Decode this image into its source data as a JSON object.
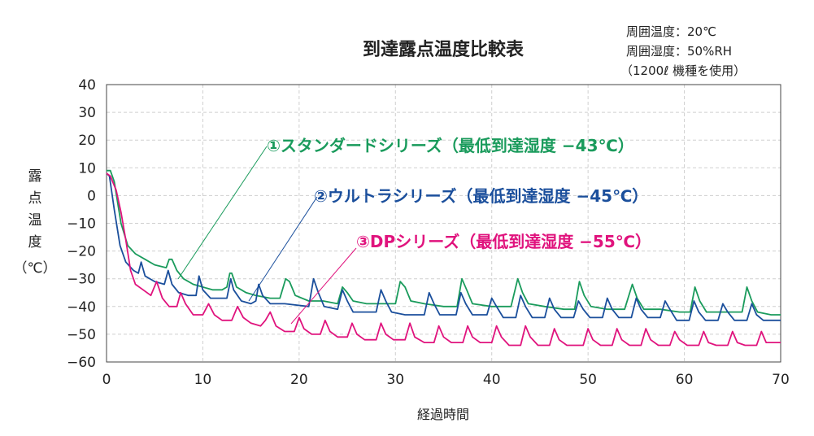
{
  "chart_data": {
    "type": "line",
    "title": "到達露点温度比較表",
    "notes": [
      "周囲温度：20℃",
      "周囲湿度：50%RH",
      "（1200ℓ 機種を使用）"
    ],
    "xlabel": "経過時間",
    "ylabel": "露点温度（℃）",
    "xlim": [
      0,
      70
    ],
    "ylim": [
      -60,
      40
    ],
    "xticks": [
      0,
      10,
      20,
      30,
      40,
      50,
      60,
      70
    ],
    "yticks": [
      40,
      30,
      20,
      10,
      0,
      -10,
      -20,
      -30,
      -40,
      -50,
      -60
    ],
    "xtick_labels": [
      "0",
      "10",
      "20",
      "30",
      "40",
      "50",
      "60",
      "70"
    ],
    "ytick_labels": [
      "40",
      "30",
      "20",
      "10",
      "0",
      "−10",
      "−20",
      "−30",
      "−40",
      "−50",
      "−60"
    ],
    "grid": true,
    "series": [
      {
        "name": "①スタンダードシリーズ（最低到達湿度 −43℃）",
        "color": "#1a9b5c",
        "points": [
          [
            0,
            9
          ],
          [
            0.4,
            9
          ],
          [
            0.8,
            5
          ],
          [
            1.5,
            -10
          ],
          [
            2.2,
            -18
          ],
          [
            3,
            -21
          ],
          [
            4,
            -23
          ],
          [
            5,
            -25
          ],
          [
            6.2,
            -26
          ],
          [
            6.5,
            -23
          ],
          [
            6.8,
            -23
          ],
          [
            7.3,
            -27
          ],
          [
            8,
            -30
          ],
          [
            9,
            -32
          ],
          [
            10,
            -33
          ],
          [
            11,
            -34
          ],
          [
            12,
            -34
          ],
          [
            12.5,
            -33
          ],
          [
            12.8,
            -28
          ],
          [
            13,
            -28
          ],
          [
            13.5,
            -33
          ],
          [
            14.5,
            -35
          ],
          [
            15.5,
            -36
          ],
          [
            17,
            -37
          ],
          [
            18,
            -37
          ],
          [
            18.6,
            -30
          ],
          [
            19,
            -31
          ],
          [
            19.6,
            -36
          ],
          [
            21,
            -38
          ],
          [
            22.5,
            -38
          ],
          [
            24,
            -39
          ],
          [
            24.5,
            -33
          ],
          [
            25,
            -35
          ],
          [
            25.6,
            -38
          ],
          [
            27,
            -39
          ],
          [
            28.5,
            -39
          ],
          [
            30,
            -39
          ],
          [
            30.5,
            -31
          ],
          [
            31,
            -33
          ],
          [
            31.6,
            -38
          ],
          [
            33,
            -39
          ],
          [
            35,
            -40
          ],
          [
            36.4,
            -40
          ],
          [
            36.9,
            -30
          ],
          [
            37.4,
            -34
          ],
          [
            38,
            -39
          ],
          [
            40,
            -40
          ],
          [
            42,
            -40
          ],
          [
            42.7,
            -30
          ],
          [
            43.2,
            -35
          ],
          [
            43.8,
            -39
          ],
          [
            45.5,
            -40
          ],
          [
            47.5,
            -41
          ],
          [
            48.6,
            -41
          ],
          [
            49.1,
            -31
          ],
          [
            49.6,
            -36
          ],
          [
            50.3,
            -40
          ],
          [
            52,
            -41
          ],
          [
            53.8,
            -41
          ],
          [
            54.6,
            -32
          ],
          [
            55.1,
            -37
          ],
          [
            55.8,
            -41
          ],
          [
            57.5,
            -41
          ],
          [
            59.5,
            -42
          ],
          [
            60.6,
            -42
          ],
          [
            61.1,
            -33
          ],
          [
            61.6,
            -38
          ],
          [
            62.3,
            -42
          ],
          [
            64,
            -42
          ],
          [
            66,
            -42
          ],
          [
            66.5,
            -33
          ],
          [
            67,
            -38
          ],
          [
            67.6,
            -42
          ],
          [
            69,
            -43
          ],
          [
            70,
            -43
          ]
        ]
      },
      {
        "name": "②ウルトラシリーズ（最低到達湿度 −45℃）",
        "color": "#1b4f9c",
        "points": [
          [
            0,
            8
          ],
          [
            0.3,
            7
          ],
          [
            0.8,
            -5
          ],
          [
            1.4,
            -18
          ],
          [
            2,
            -24
          ],
          [
            2.8,
            -27
          ],
          [
            3.3,
            -28
          ],
          [
            3.6,
            -24
          ],
          [
            4,
            -29
          ],
          [
            5,
            -31
          ],
          [
            6,
            -32
          ],
          [
            6.4,
            -27
          ],
          [
            6.8,
            -32
          ],
          [
            7.5,
            -35
          ],
          [
            8.5,
            -36
          ],
          [
            9.3,
            -36
          ],
          [
            9.6,
            -29
          ],
          [
            10,
            -34
          ],
          [
            10.8,
            -37
          ],
          [
            12,
            -37
          ],
          [
            12.5,
            -37
          ],
          [
            12.9,
            -30
          ],
          [
            13.2,
            -34
          ],
          [
            14,
            -38
          ],
          [
            15,
            -39
          ],
          [
            15.5,
            -38
          ],
          [
            15.8,
            -32
          ],
          [
            16.2,
            -36
          ],
          [
            17,
            -39
          ],
          [
            18.5,
            -39
          ],
          [
            21,
            -40
          ],
          [
            21.5,
            -30
          ],
          [
            22,
            -35
          ],
          [
            22.6,
            -40
          ],
          [
            24,
            -41
          ],
          [
            24.5,
            -34
          ],
          [
            25,
            -38
          ],
          [
            25.6,
            -42
          ],
          [
            27,
            -42
          ],
          [
            28,
            -42
          ],
          [
            28.5,
            -34
          ],
          [
            29,
            -38
          ],
          [
            29.6,
            -42
          ],
          [
            31,
            -43
          ],
          [
            33,
            -43
          ],
          [
            33.5,
            -35
          ],
          [
            34,
            -39
          ],
          [
            34.6,
            -43
          ],
          [
            36.3,
            -43
          ],
          [
            36.8,
            -35
          ],
          [
            37.3,
            -39
          ],
          [
            38,
            -43
          ],
          [
            39.5,
            -43
          ],
          [
            40,
            -37
          ],
          [
            40.5,
            -40
          ],
          [
            41.2,
            -44
          ],
          [
            42.5,
            -44
          ],
          [
            43,
            -36
          ],
          [
            43.5,
            -40
          ],
          [
            44.2,
            -44
          ],
          [
            45.5,
            -44
          ],
          [
            46,
            -37
          ],
          [
            46.5,
            -41
          ],
          [
            47.2,
            -44
          ],
          [
            48.5,
            -44
          ],
          [
            49,
            -38
          ],
          [
            49.5,
            -41
          ],
          [
            50.2,
            -44
          ],
          [
            51.5,
            -44
          ],
          [
            52,
            -37
          ],
          [
            52.5,
            -41
          ],
          [
            53.2,
            -44
          ],
          [
            54.5,
            -44
          ],
          [
            55,
            -37
          ],
          [
            55.5,
            -41
          ],
          [
            56.2,
            -44
          ],
          [
            57.5,
            -44
          ],
          [
            58,
            -38
          ],
          [
            58.5,
            -41
          ],
          [
            59.2,
            -45
          ],
          [
            60.5,
            -45
          ],
          [
            61,
            -38
          ],
          [
            61.5,
            -42
          ],
          [
            62.2,
            -45
          ],
          [
            63.5,
            -45
          ],
          [
            64,
            -39
          ],
          [
            64.5,
            -42
          ],
          [
            65.2,
            -45
          ],
          [
            66.5,
            -45
          ],
          [
            67,
            -39
          ],
          [
            67.5,
            -43
          ],
          [
            68.2,
            -45
          ],
          [
            69.5,
            -45
          ],
          [
            70,
            -45
          ]
        ]
      },
      {
        "name": "③DPシリーズ（最低到達湿度 −55℃）",
        "color": "#e0137d",
        "points": [
          [
            0,
            8
          ],
          [
            0.4,
            7
          ],
          [
            1,
            2
          ],
          [
            1.5,
            -6
          ],
          [
            2,
            -16
          ],
          [
            2.5,
            -27
          ],
          [
            3,
            -32
          ],
          [
            3.8,
            -34
          ],
          [
            4.6,
            -36
          ],
          [
            5.2,
            -31
          ],
          [
            5.8,
            -37
          ],
          [
            6.5,
            -40
          ],
          [
            7.3,
            -40
          ],
          [
            7.7,
            -35
          ],
          [
            8.2,
            -39
          ],
          [
            9,
            -43
          ],
          [
            10,
            -43
          ],
          [
            10.6,
            -39
          ],
          [
            11.2,
            -43
          ],
          [
            12,
            -45
          ],
          [
            13,
            -45
          ],
          [
            13.6,
            -40
          ],
          [
            14.2,
            -44
          ],
          [
            15,
            -46
          ],
          [
            16,
            -47
          ],
          [
            16.5,
            -45
          ],
          [
            17,
            -42
          ],
          [
            17.6,
            -47
          ],
          [
            18.5,
            -49
          ],
          [
            19.5,
            -49
          ],
          [
            20,
            -44
          ],
          [
            20.5,
            -48
          ],
          [
            21.3,
            -50
          ],
          [
            22.2,
            -50
          ],
          [
            22.7,
            -45
          ],
          [
            23.2,
            -49
          ],
          [
            24,
            -51
          ],
          [
            25,
            -51
          ],
          [
            25.5,
            -46
          ],
          [
            26,
            -50
          ],
          [
            26.8,
            -52
          ],
          [
            28,
            -52
          ],
          [
            28.5,
            -46
          ],
          [
            29,
            -50
          ],
          [
            29.8,
            -52
          ],
          [
            31,
            -52
          ],
          [
            31.5,
            -46
          ],
          [
            32,
            -51
          ],
          [
            33,
            -53
          ],
          [
            34,
            -53
          ],
          [
            34.5,
            -47
          ],
          [
            35,
            -51
          ],
          [
            35.8,
            -53
          ],
          [
            37,
            -53
          ],
          [
            37.5,
            -47
          ],
          [
            38,
            -51
          ],
          [
            38.8,
            -53
          ],
          [
            40,
            -53
          ],
          [
            40.5,
            -47
          ],
          [
            41,
            -51
          ],
          [
            41.8,
            -54
          ],
          [
            43,
            -54
          ],
          [
            43.5,
            -47
          ],
          [
            44,
            -51
          ],
          [
            44.8,
            -54
          ],
          [
            46,
            -54
          ],
          [
            46.5,
            -48
          ],
          [
            47,
            -52
          ],
          [
            47.8,
            -54
          ],
          [
            49.5,
            -54
          ],
          [
            50,
            -48
          ],
          [
            50.5,
            -52
          ],
          [
            51.3,
            -54
          ],
          [
            52.5,
            -54
          ],
          [
            53,
            -48
          ],
          [
            53.5,
            -52
          ],
          [
            54.3,
            -54
          ],
          [
            55.5,
            -54
          ],
          [
            56,
            -48
          ],
          [
            56.5,
            -52
          ],
          [
            57.3,
            -54
          ],
          [
            58.5,
            -54
          ],
          [
            59,
            -49
          ],
          [
            59.5,
            -52
          ],
          [
            60.3,
            -54
          ],
          [
            61.5,
            -54
          ],
          [
            62,
            -49
          ],
          [
            62.5,
            -53
          ],
          [
            63.3,
            -54
          ],
          [
            64.5,
            -54
          ],
          [
            65,
            -49
          ],
          [
            65.5,
            -53
          ],
          [
            66.3,
            -54
          ],
          [
            67.5,
            -54
          ],
          [
            68,
            -49
          ],
          [
            68.5,
            -53
          ],
          [
            69.3,
            -53
          ],
          [
            70,
            -53
          ]
        ]
      }
    ]
  }
}
